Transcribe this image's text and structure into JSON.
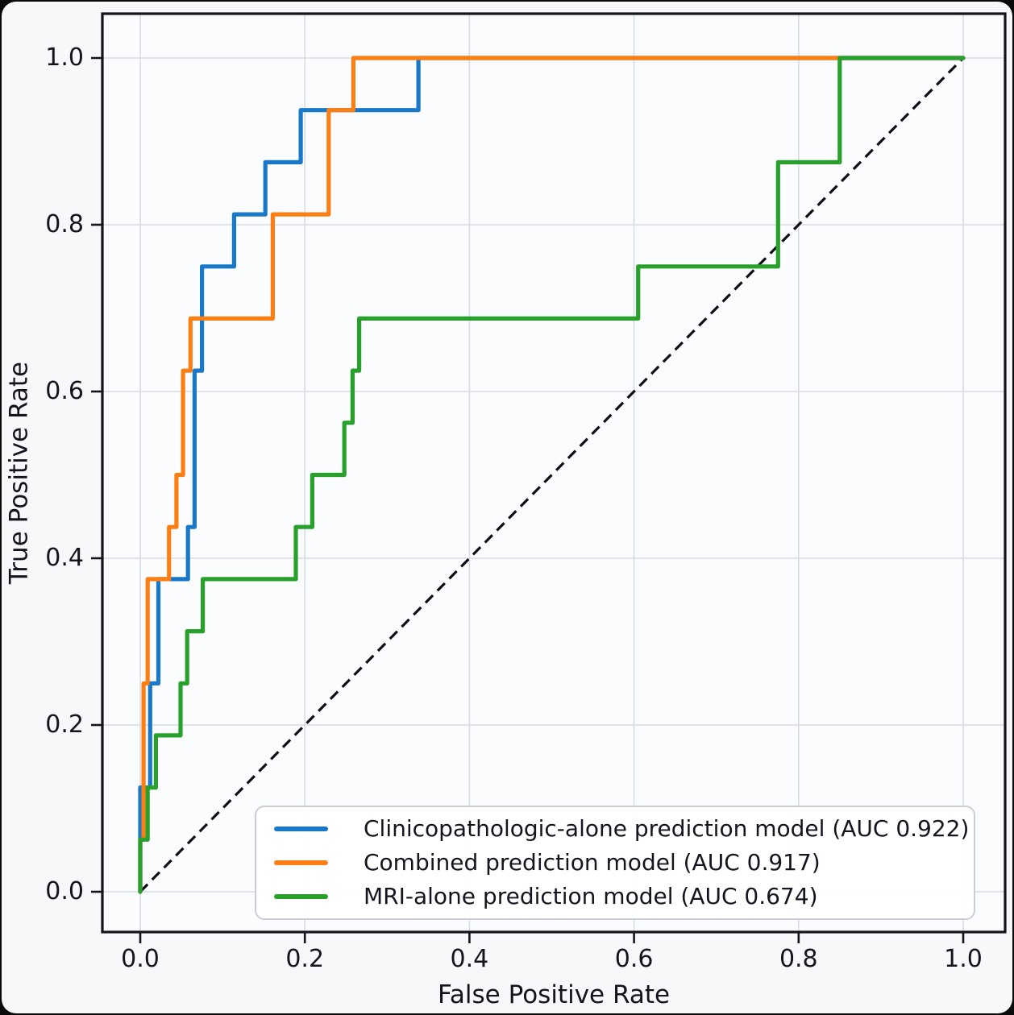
{
  "figure": {
    "background": "#f6f8fa",
    "plot_background": "#fafcfe",
    "frame_color": "#0a0a0c",
    "spine_color": "#14141d",
    "grid_color": "#d8dce4",
    "text_color": "#14141d"
  },
  "chart_data": {
    "type": "line",
    "subtype": "roc-curves",
    "title": "",
    "xlabel": "False Positive Rate",
    "ylabel": "True Positive Rate",
    "xlim": [
      -0.05,
      1.05
    ],
    "ylim": [
      -0.05,
      1.05
    ],
    "grid": true,
    "legend_position": "lower right",
    "x_ticks": [
      0.0,
      0.2,
      0.4,
      0.6,
      0.8,
      1.0
    ],
    "x_tick_labels": [
      "0.0",
      "0.2",
      "0.4",
      "0.6",
      "0.8",
      "1.0"
    ],
    "y_ticks": [
      0.0,
      0.2,
      0.4,
      0.6,
      0.8,
      1.0
    ],
    "y_tick_labels": [
      "0.0",
      "0.2",
      "0.4",
      "0.6",
      "0.8",
      "1.0"
    ],
    "reference_line": {
      "name": "chance-diagonal",
      "style": "dashed",
      "color": "#0e0e16",
      "points": [
        [
          0,
          0
        ],
        [
          1,
          1
        ]
      ]
    },
    "series": [
      {
        "name": "clinicopathologic-alone-model",
        "legend_label": "Clinicopathologic-alone prediction model (AUC 0.922)",
        "auc": 0.922,
        "color": "#1a78c9",
        "points": [
          [
            0,
            0
          ],
          [
            0,
            0.125
          ],
          [
            0.012,
            0.125
          ],
          [
            0.012,
            0.25
          ],
          [
            0.022,
            0.25
          ],
          [
            0.022,
            0.375
          ],
          [
            0.058,
            0.375
          ],
          [
            0.058,
            0.4375
          ],
          [
            0.066,
            0.4375
          ],
          [
            0.066,
            0.625
          ],
          [
            0.075,
            0.625
          ],
          [
            0.075,
            0.75
          ],
          [
            0.114,
            0.75
          ],
          [
            0.114,
            0.8125
          ],
          [
            0.152,
            0.8125
          ],
          [
            0.152,
            0.875
          ],
          [
            0.195,
            0.875
          ],
          [
            0.195,
            0.9375
          ],
          [
            0.338,
            0.9375
          ],
          [
            0.338,
            1.0
          ],
          [
            1.0,
            1.0
          ]
        ]
      },
      {
        "name": "combined-model",
        "legend_label": "Combined prediction model (AUC 0.917)",
        "auc": 0.917,
        "color": "#fd7f14",
        "points": [
          [
            0,
            0
          ],
          [
            0,
            0.0625
          ],
          [
            0.004,
            0.0625
          ],
          [
            0.004,
            0.25
          ],
          [
            0.009,
            0.25
          ],
          [
            0.009,
            0.375
          ],
          [
            0.035,
            0.375
          ],
          [
            0.035,
            0.4375
          ],
          [
            0.044,
            0.4375
          ],
          [
            0.044,
            0.5
          ],
          [
            0.052,
            0.5
          ],
          [
            0.052,
            0.625
          ],
          [
            0.061,
            0.625
          ],
          [
            0.061,
            0.6875
          ],
          [
            0.161,
            0.6875
          ],
          [
            0.161,
            0.8125
          ],
          [
            0.229,
            0.8125
          ],
          [
            0.229,
            0.9375
          ],
          [
            0.259,
            0.9375
          ],
          [
            0.259,
            1.0
          ],
          [
            1.0,
            1.0
          ]
        ]
      },
      {
        "name": "mri-alone-model",
        "legend_label": "MRI-alone prediction model (AUC 0.674)",
        "auc": 0.674,
        "color": "#2aa02c",
        "points": [
          [
            0,
            0
          ],
          [
            0,
            0.0625
          ],
          [
            0.009,
            0.0625
          ],
          [
            0.009,
            0.125
          ],
          [
            0.019,
            0.125
          ],
          [
            0.019,
            0.1875
          ],
          [
            0.049,
            0.1875
          ],
          [
            0.049,
            0.25
          ],
          [
            0.057,
            0.25
          ],
          [
            0.057,
            0.3125
          ],
          [
            0.076,
            0.3125
          ],
          [
            0.076,
            0.375
          ],
          [
            0.189,
            0.375
          ],
          [
            0.189,
            0.4375
          ],
          [
            0.209,
            0.4375
          ],
          [
            0.209,
            0.5
          ],
          [
            0.248,
            0.5
          ],
          [
            0.248,
            0.5625
          ],
          [
            0.258,
            0.5625
          ],
          [
            0.258,
            0.625
          ],
          [
            0.266,
            0.625
          ],
          [
            0.266,
            0.6875
          ],
          [
            0.605,
            0.6875
          ],
          [
            0.605,
            0.75
          ],
          [
            0.775,
            0.75
          ],
          [
            0.775,
            0.875
          ],
          [
            0.85,
            0.875
          ],
          [
            0.85,
            1.0
          ],
          [
            1.0,
            1.0
          ]
        ]
      }
    ]
  }
}
